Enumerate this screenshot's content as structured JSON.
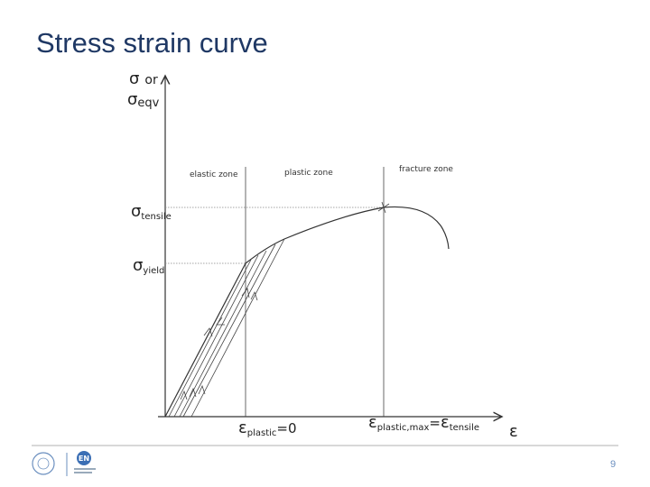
{
  "header": {
    "title": "Stress strain curve"
  },
  "diagram": {
    "y_axis_label": {
      "line1": {
        "symbol": "σ",
        "text": "or"
      },
      "line2": {
        "symbol": "σ",
        "sub": "eqv"
      }
    },
    "zones": [
      "elastic zone",
      "plastic zone",
      "fracture zone"
    ],
    "y_marks": [
      {
        "symbol": "σ",
        "sub": "tensile"
      },
      {
        "symbol": "σ",
        "sub": "yield"
      }
    ],
    "x_marks": [
      {
        "symbol": "ε",
        "sub": "plastic",
        "suffix": "=0"
      },
      {
        "symbol": "ε",
        "sub": "plastic,max",
        "eq": "=",
        "symbol2": "ε",
        "sub2": "tensile"
      }
    ],
    "x_axis_label": "ε"
  },
  "footer": {
    "logo_text": "EN",
    "page_number": "9"
  }
}
